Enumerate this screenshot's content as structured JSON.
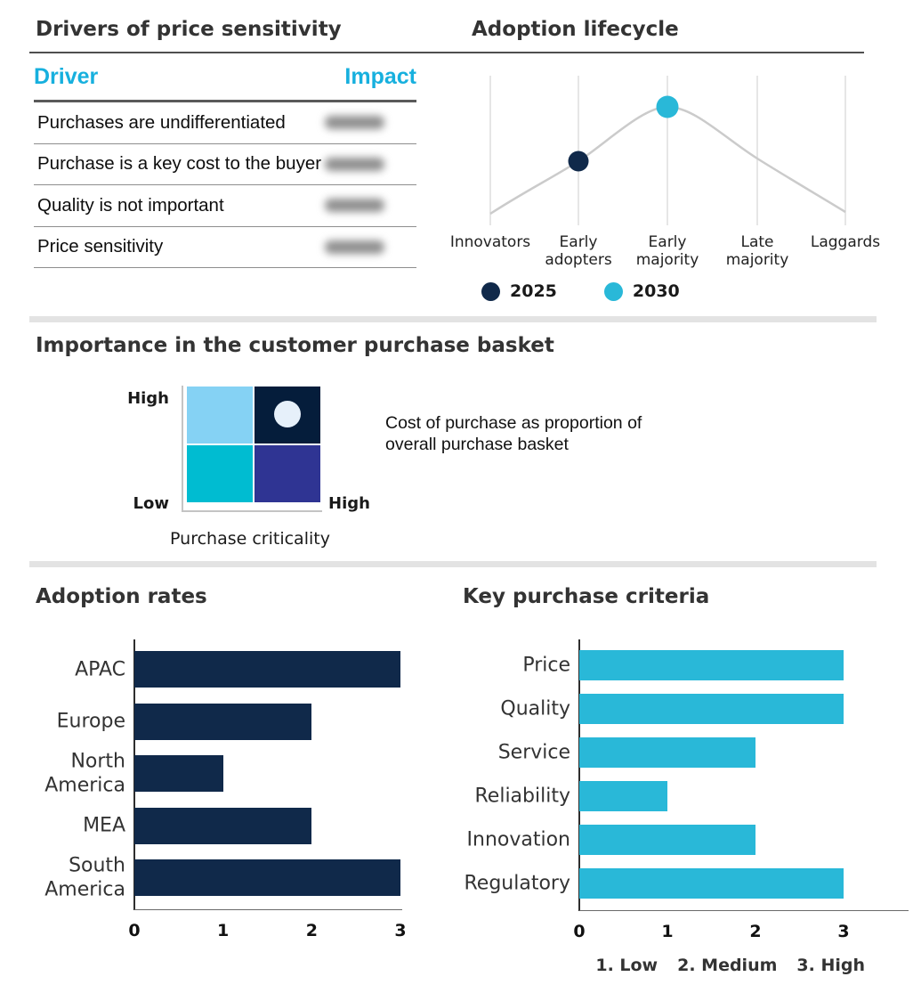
{
  "chart_data": [
    {
      "id": "drivers_of_price_sensitivity",
      "type": "table",
      "title": "Drivers of price sensitivity",
      "columns": [
        "Driver",
        "Impact"
      ],
      "header_color": "#17B0DE",
      "rows": [
        {
          "driver": "Purchases are undifferentiated",
          "impact": "",
          "impact_visual": "blurred"
        },
        {
          "driver": "Purchase is a key cost to the buyer",
          "impact": "",
          "impact_visual": "blurred"
        },
        {
          "driver": "Quality is not important",
          "impact": "",
          "impact_visual": "blurred"
        },
        {
          "driver": "Price sensitivity",
          "impact": "",
          "impact_visual": "blurred"
        }
      ]
    },
    {
      "id": "adoption_lifecycle",
      "type": "line",
      "title": "Adoption lifecycle",
      "x_categories": [
        "Innovators",
        "Early adopters",
        "Early majority",
        "Late majority",
        "Laggards"
      ],
      "curve_shape": "gray bell-shaped adoption curve peaking at Early majority",
      "curve_color": "#CBCBCB",
      "gridline_color": "#DDDDDD",
      "series": [
        {
          "name": "2025",
          "x": "Early adopters",
          "marker_color": "#10294A"
        },
        {
          "name": "2030",
          "x": "Early majority",
          "marker_color": "#29B8D8"
        }
      ],
      "legend_position": "bottom"
    },
    {
      "id": "purchase_basket_matrix",
      "type": "heatmap",
      "title": "Importance in the customer purchase basket",
      "x_label": "Purchase criticality",
      "y_axis_low": "Low",
      "y_axis_high": "High",
      "x_axis_high": "High",
      "cells": [
        [
          "#85D2F4",
          "#051D3B"
        ],
        [
          "#00BCD1",
          "#2F3493"
        ]
      ],
      "marker": {
        "quadrant": "top-right",
        "color": "#E6F0FA"
      },
      "annotation_lines": [
        "Cost of purchase as proportion of",
        "overall purchase basket"
      ]
    },
    {
      "id": "adoption_rates",
      "type": "bar",
      "orientation": "horizontal",
      "title": "Adoption rates",
      "categories": [
        "APAC",
        "Europe",
        "North America",
        "MEA",
        "South America"
      ],
      "values": [
        3,
        2,
        1,
        2,
        3
      ],
      "bar_color": "#10294A",
      "xticks": [
        0,
        1,
        2,
        3
      ],
      "xlim": [
        0,
        3
      ]
    },
    {
      "id": "key_purchase_criteria",
      "type": "bar",
      "orientation": "horizontal",
      "title": "Key purchase criteria",
      "categories": [
        "Price",
        "Quality",
        "Service",
        "Reliability",
        "Innovation",
        "Regulatory"
      ],
      "values": [
        3,
        3,
        2,
        1,
        2,
        3
      ],
      "bar_color": "#29B8D8",
      "xticks": [
        0,
        1,
        2,
        3
      ],
      "xlim": [
        0,
        3
      ],
      "scale_legend": [
        "1. Low",
        "2. Medium",
        "3. High"
      ]
    }
  ]
}
